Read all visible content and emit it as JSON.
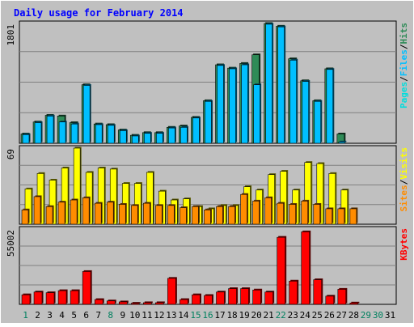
{
  "chart_data": {
    "type": "bar",
    "title": "Daily usage for February 2014",
    "days": [
      "1",
      "2",
      "3",
      "4",
      "5",
      "6",
      "7",
      "8",
      "9",
      "10",
      "11",
      "12",
      "13",
      "14",
      "15",
      "16",
      "17",
      "18",
      "19",
      "20",
      "21",
      "22",
      "23",
      "24",
      "25",
      "26",
      "27",
      "28",
      "29",
      "30",
      "31"
    ],
    "weekend_days": [
      1,
      8,
      15,
      16,
      22,
      29,
      30
    ],
    "panels": [
      {
        "name": "hits_files_pages",
        "ymax_label": "1801",
        "ymax": 1801,
        "legend": [
          "Pages",
          "/",
          "Files",
          "/",
          "Hits"
        ],
        "series": [
          {
            "name": "Hits",
            "color": "#2e8b57",
            "values": [
              140,
              320,
              420,
              410,
              310,
              880,
              290,
              280,
              200,
              120,
              160,
              160,
              240,
              260,
              390,
              640,
              1180,
              1130,
              1200,
              1330,
              1801,
              1760,
              1270,
              940,
              640,
              1120,
              140,
              0,
              0,
              0,
              0
            ]
          },
          {
            "name": "Files",
            "color": "#00bfff",
            "values": [
              130,
              310,
              410,
              320,
              290,
              870,
              280,
              270,
              190,
              110,
              150,
              150,
              230,
              240,
              380,
              630,
              1170,
              1120,
              1180,
              880,
              1790,
              1750,
              1250,
              930,
              630,
              1110,
              20,
              0,
              0,
              0,
              0
            ]
          },
          {
            "name": "Pages",
            "color": "#00dddd",
            "values": [
              0,
              0,
              0,
              0,
              0,
              0,
              0,
              0,
              0,
              0,
              0,
              0,
              0,
              0,
              0,
              0,
              0,
              0,
              0,
              0,
              0,
              0,
              0,
              0,
              0,
              0,
              0,
              0,
              0,
              0,
              0
            ]
          }
        ]
      },
      {
        "name": "visits_sites",
        "ymax_label": "69",
        "ymax": 69,
        "legend": [
          "Sites",
          "/",
          "Visits"
        ],
        "series": [
          {
            "name": "Visits",
            "color": "#ffff00",
            "values": [
              32,
              46,
              40,
              51,
              69,
              47,
              51,
              50,
              37,
              37,
              47,
              30,
              22,
              23,
              16,
              14,
              17,
              17,
              34,
              31,
              45,
              48,
              31,
              56,
              55,
              46,
              31,
              0,
              0,
              0,
              0
            ]
          },
          {
            "name": "Sites",
            "color": "#ff8c00",
            "values": [
              13,
              25,
              16,
              20,
              22,
              24,
              19,
              20,
              18,
              17,
              19,
              17,
              17,
              15,
              16,
              13,
              16,
              16,
              27,
              21,
              24,
              19,
              18,
              21,
              18,
              14,
              14,
              14,
              0,
              0,
              0
            ]
          }
        ]
      },
      {
        "name": "kbytes",
        "ymax_label": "55002",
        "ymax": 55002,
        "legend": [
          "KBytes"
        ],
        "series": [
          {
            "name": "KBytes",
            "color": "#ff0000",
            "values": [
              7000,
              9000,
              8500,
              10000,
              10000,
              24000,
              3500,
              2500,
              1800,
              800,
              1200,
              1200,
              19000,
              3500,
              7000,
              6500,
              9000,
              11500,
              11500,
              10500,
              9000,
              49000,
              17000,
              53000,
              18000,
              6000,
              11000,
              1000,
              0,
              0,
              0
            ]
          }
        ]
      }
    ]
  },
  "colors": {
    "background": "#c0c0c0",
    "title": "#0000ff",
    "weekday_label": "#000000",
    "weekend_label": "#00805f",
    "legend_separator": "#000000"
  }
}
